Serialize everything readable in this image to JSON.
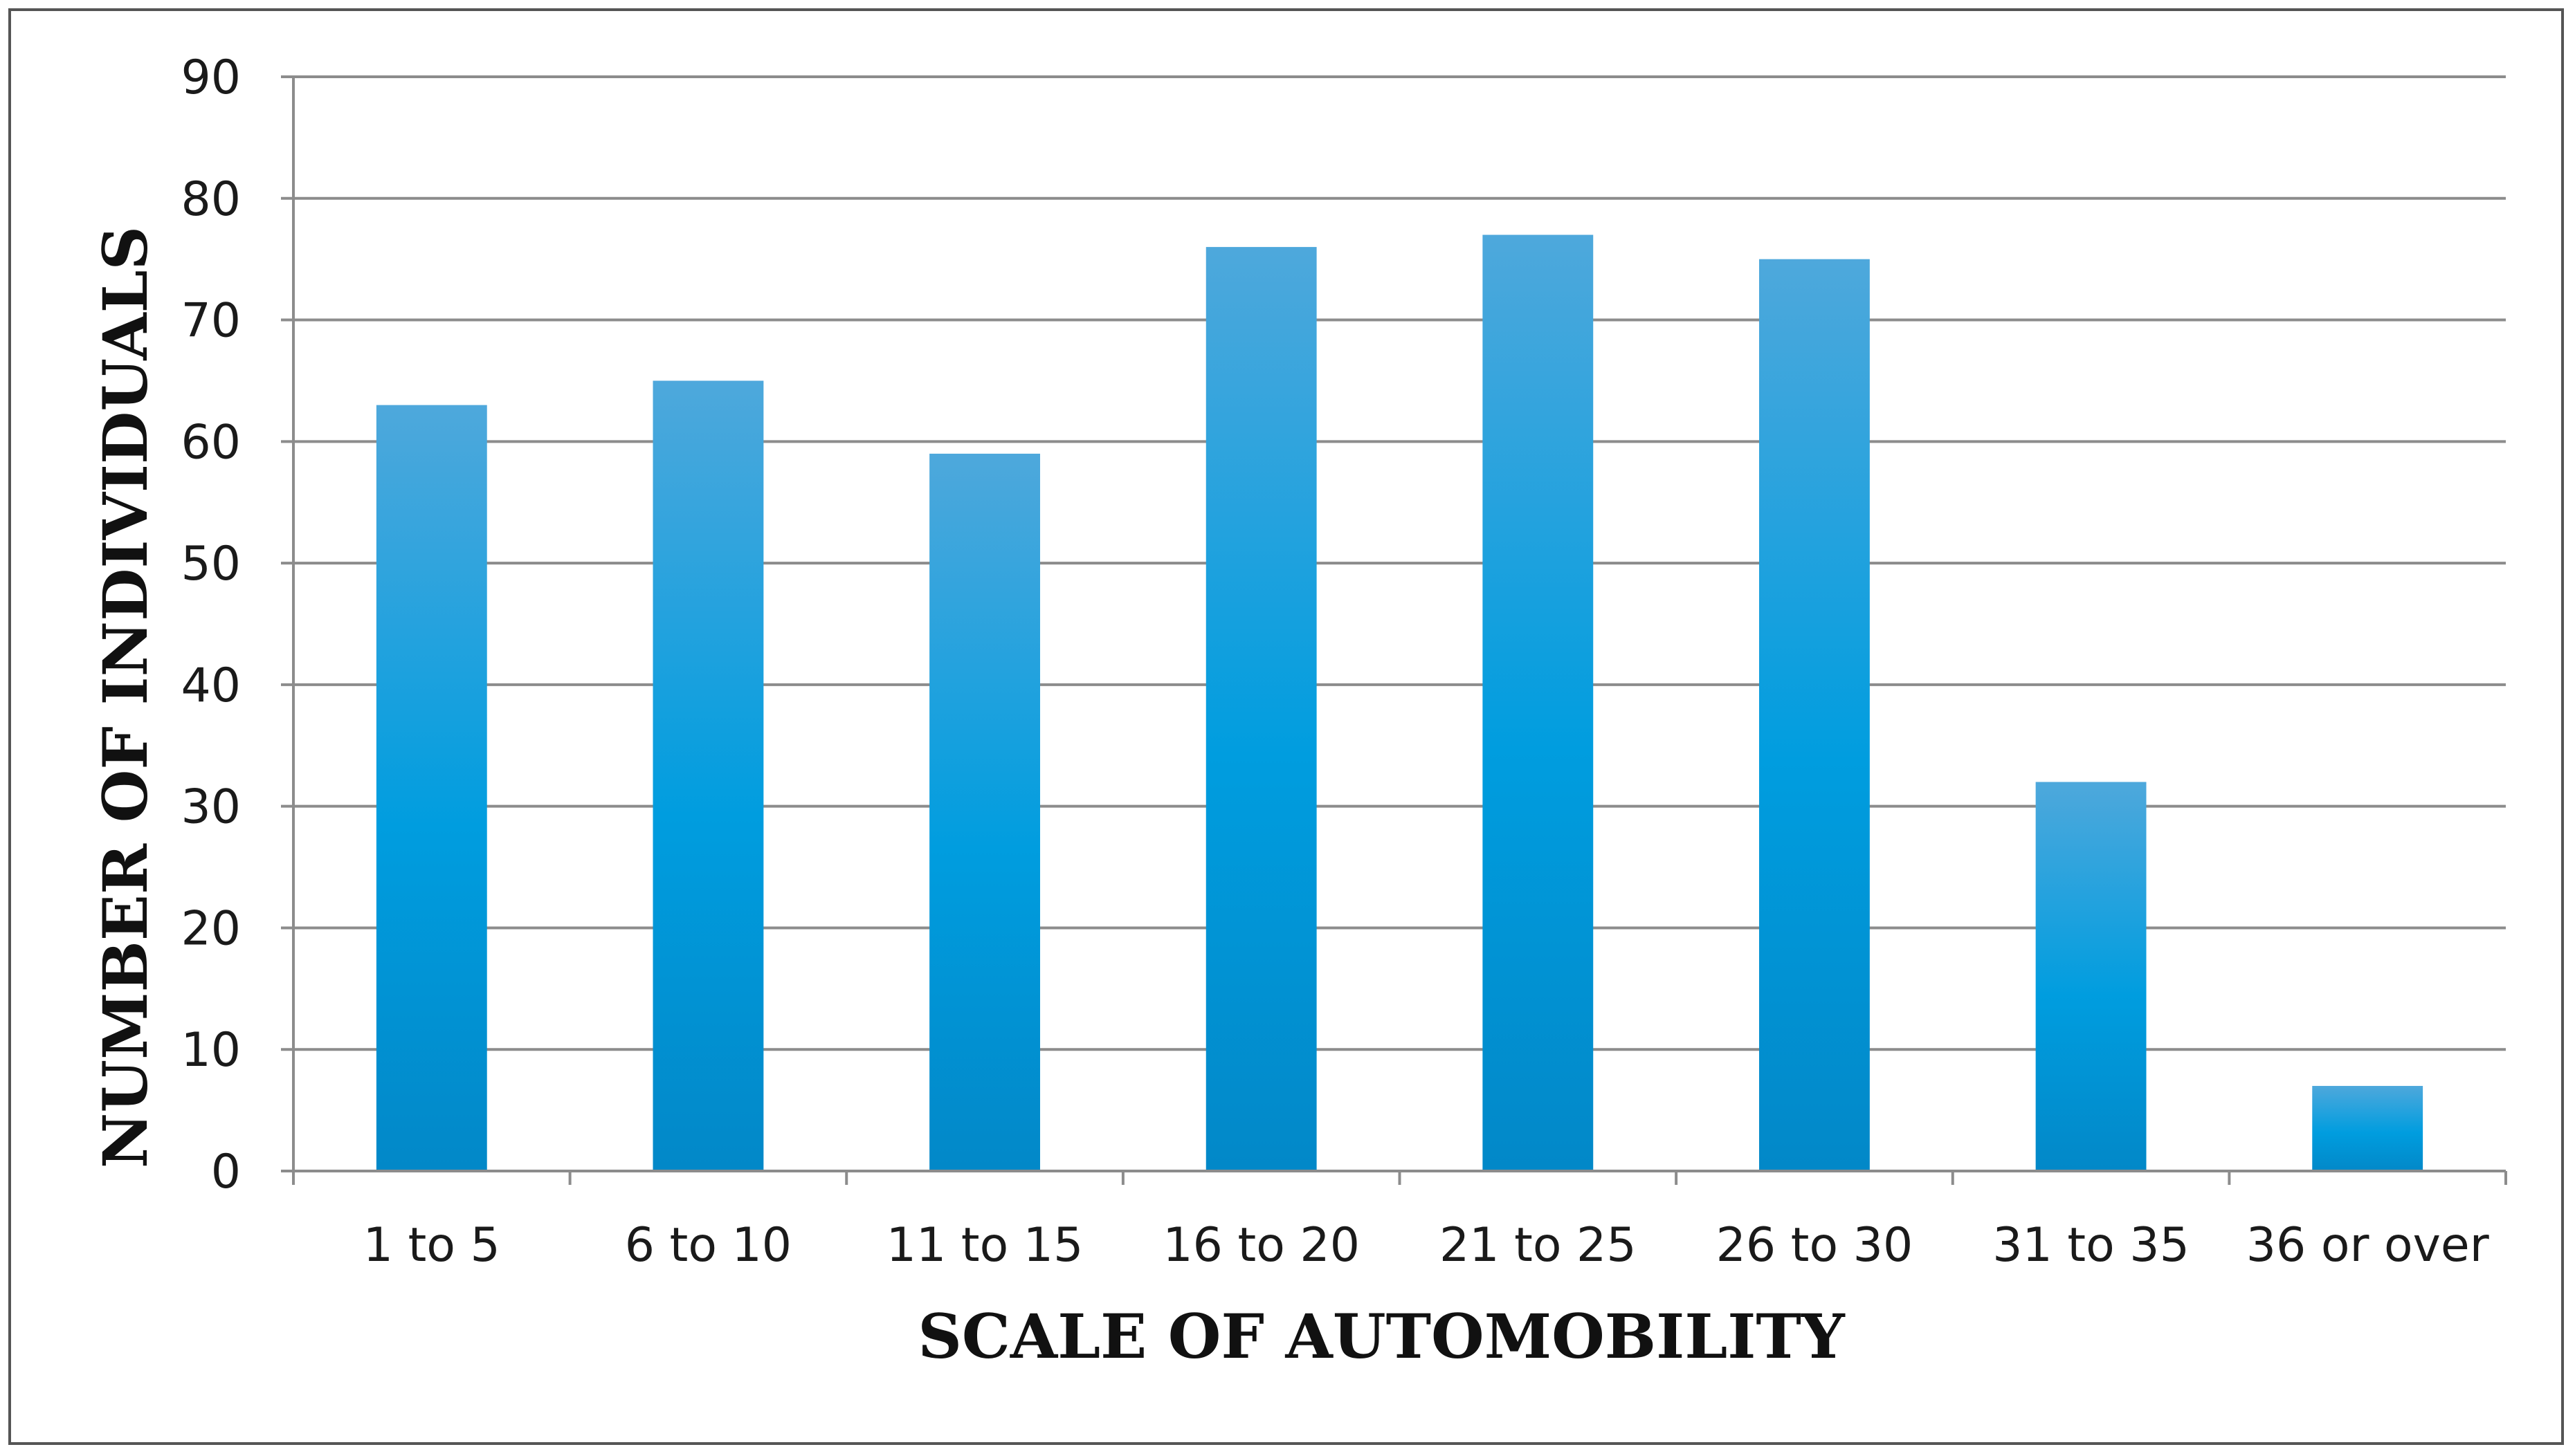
{
  "chart_data": {
    "type": "bar",
    "title": "",
    "xlabel": "SCALE OF AUTOMOBILITY",
    "ylabel": "NUMBER OF INDIVIDUALS",
    "categories": [
      "1 to 5",
      "6 to 10",
      "11 to 15",
      "16 to 20",
      "21 to 25",
      "26 to 30",
      "31 to 35",
      "36 or over"
    ],
    "values": [
      63,
      65,
      59,
      76,
      77,
      75,
      32,
      7
    ],
    "ylim": [
      0,
      90
    ],
    "yticks": [
      0,
      10,
      20,
      30,
      40,
      50,
      60,
      70,
      80,
      90
    ],
    "grid": true,
    "legend": "none",
    "colors": {
      "bar_top": "#4ea8dc",
      "bar_mid": "#009ddf",
      "bar_bottom": "#0288c8",
      "gridline": "#8c8c8c",
      "axis": "#8c8c8c"
    }
  }
}
